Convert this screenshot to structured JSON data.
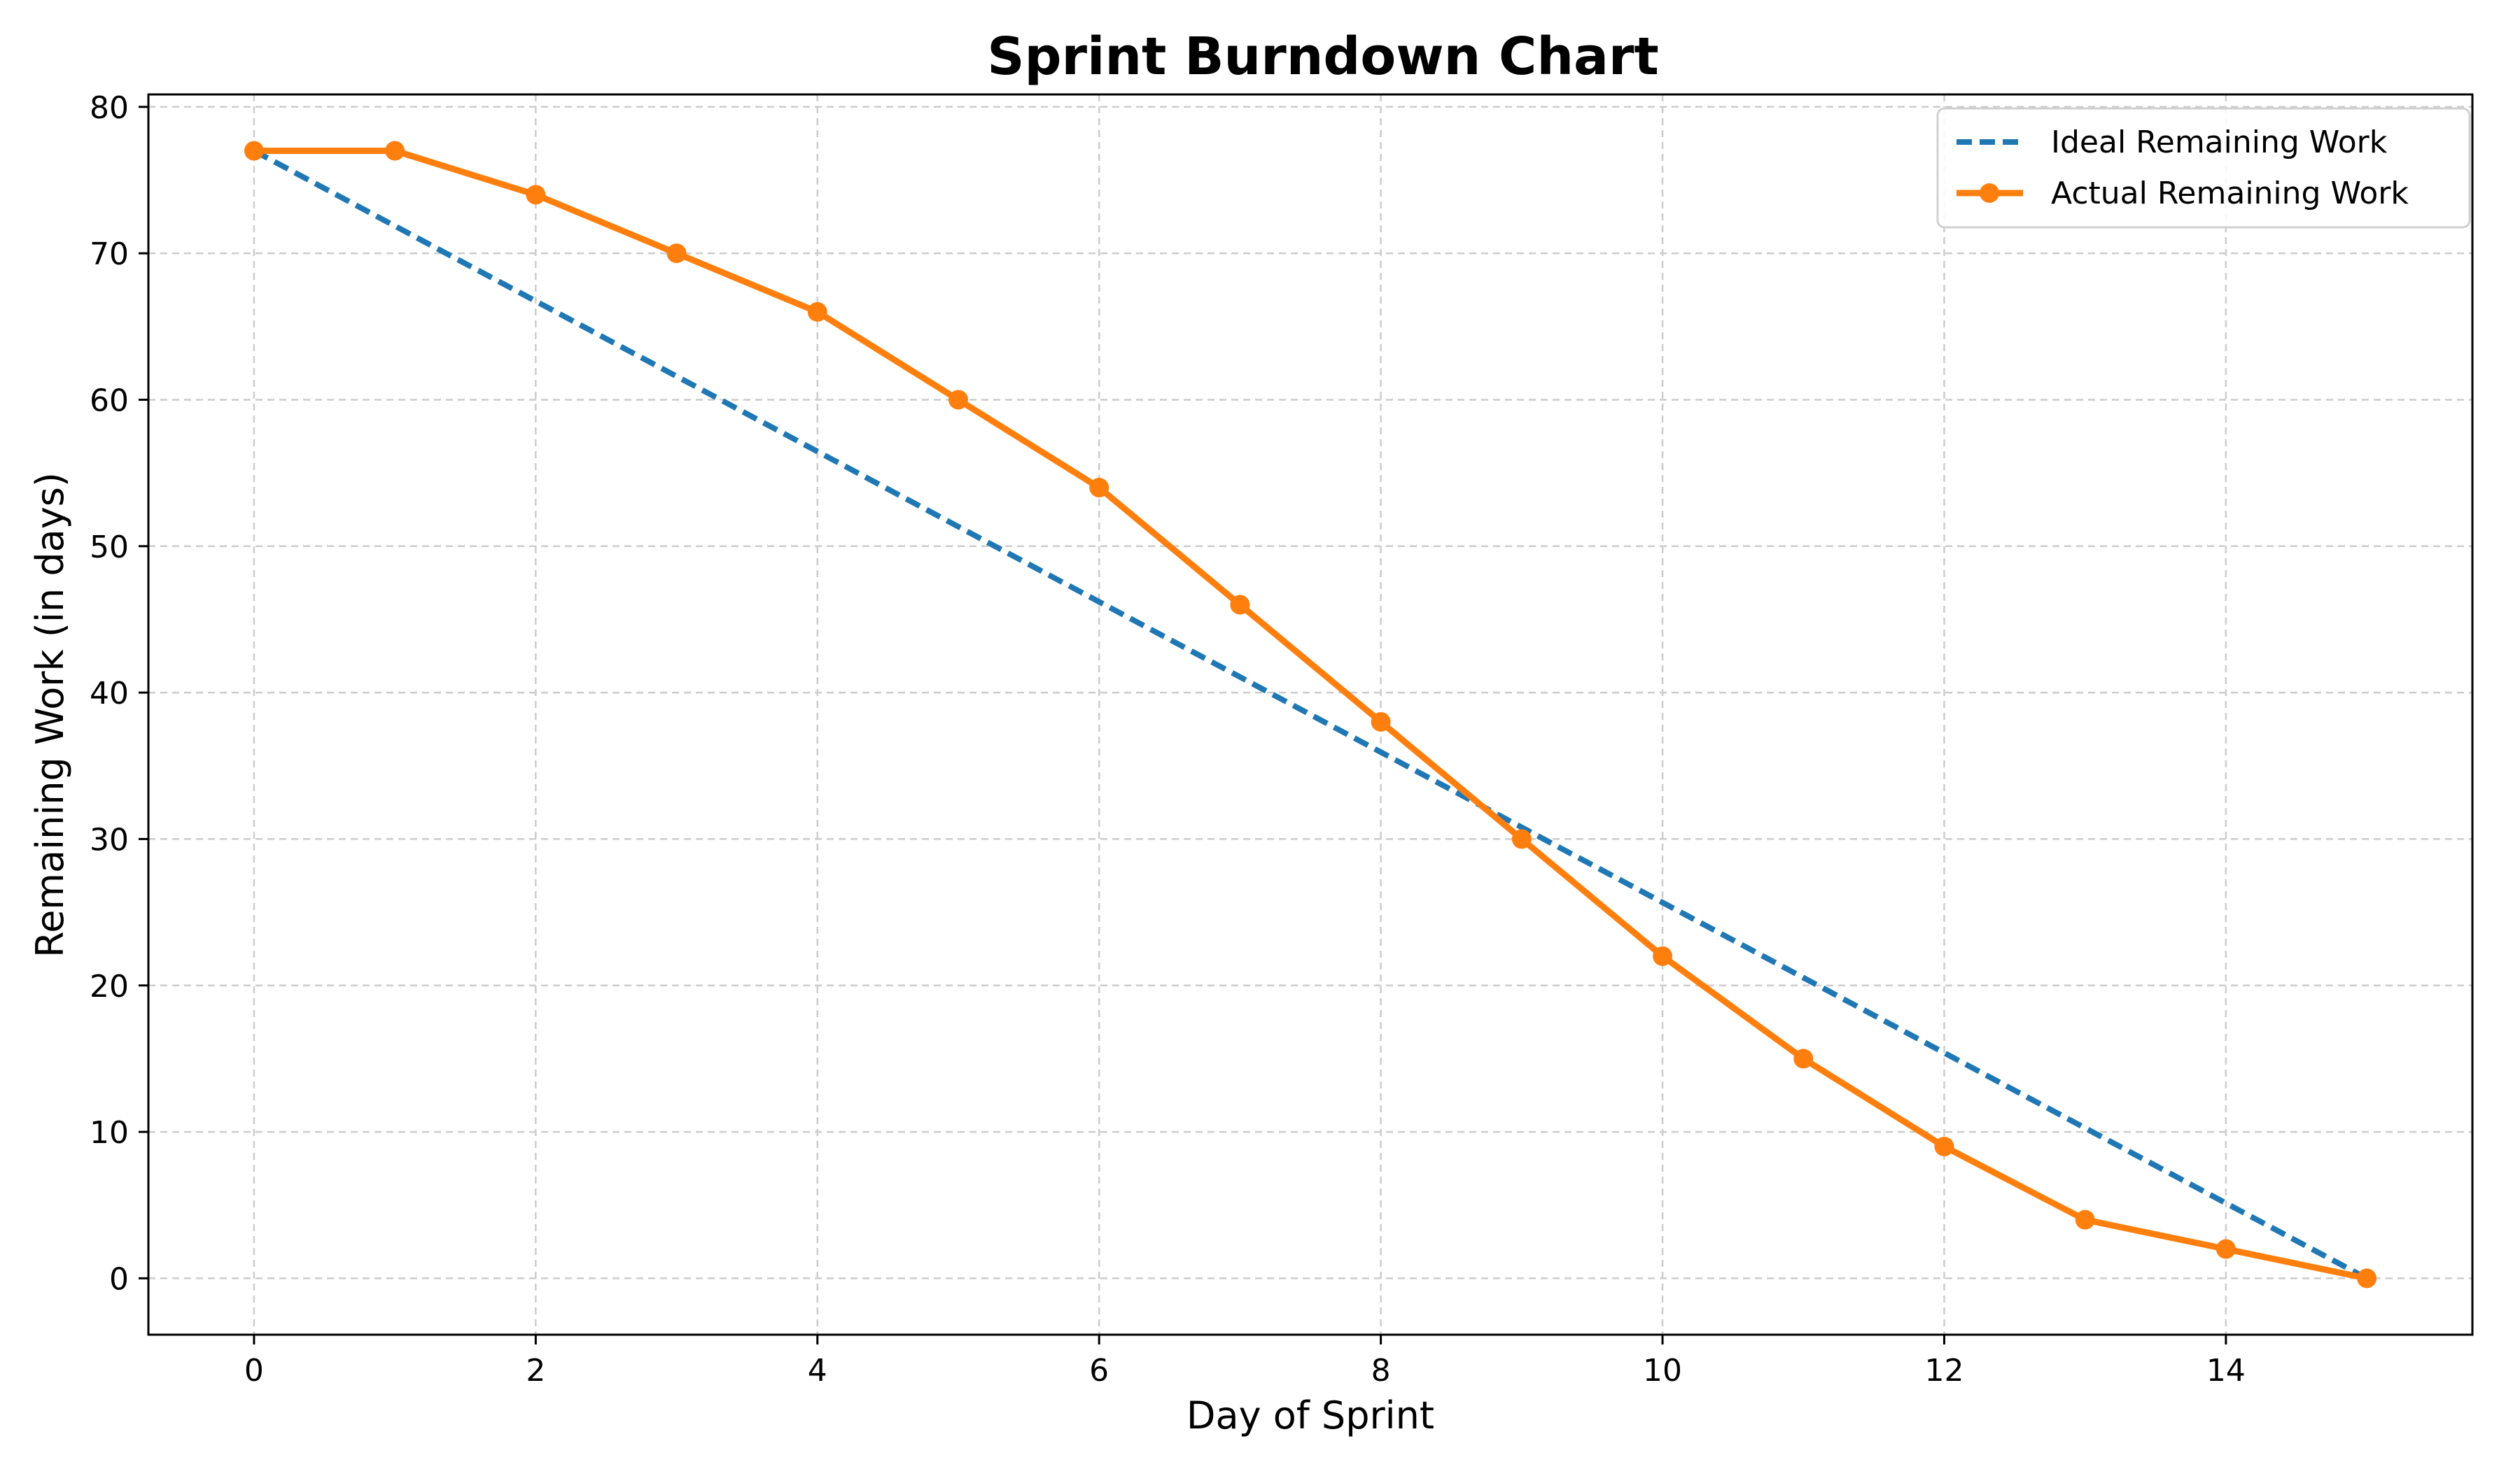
{
  "chart_data": {
    "type": "line",
    "title": "Sprint Burndown Chart",
    "xlabel": "Day of Sprint",
    "ylabel": "Remaining Work (in days)",
    "xlim": [
      -0.75,
      15.75
    ],
    "ylim": [
      -3.85,
      80.85
    ],
    "xticks": [
      0,
      2,
      4,
      6,
      8,
      10,
      12,
      14
    ],
    "yticks": [
      0,
      10,
      20,
      30,
      40,
      50,
      60,
      70,
      80
    ],
    "grid": true,
    "legend_position": "top-right",
    "series": [
      {
        "name": "Ideal Remaining Work",
        "style": "dashed",
        "markers": false,
        "color": "#1f77b4",
        "x": [
          0,
          15
        ],
        "y": [
          77,
          0
        ]
      },
      {
        "name": "Actual Remaining Work",
        "style": "solid",
        "markers": true,
        "color": "#ff7f0e",
        "x": [
          0,
          1,
          2,
          3,
          4,
          5,
          6,
          7,
          8,
          9,
          10,
          11,
          12,
          13,
          14,
          15
        ],
        "y": [
          77,
          77,
          74,
          70,
          66,
          60,
          54,
          46,
          38,
          30,
          22,
          15,
          9,
          4,
          2,
          0
        ]
      }
    ]
  }
}
